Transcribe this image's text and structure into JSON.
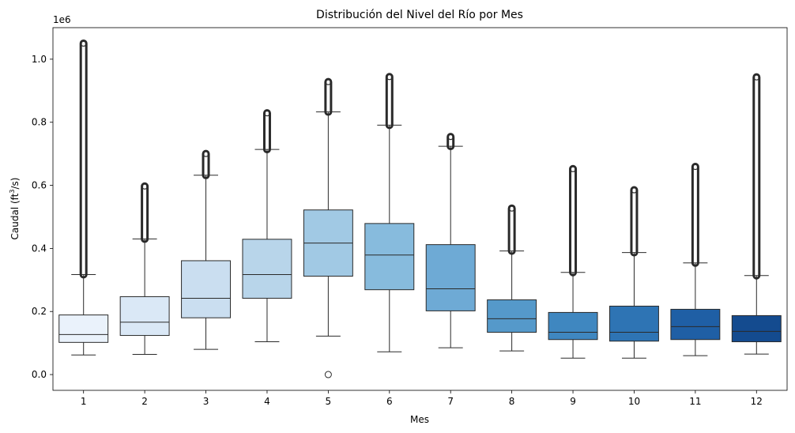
{
  "chart_data": {
    "type": "box",
    "title": "Distribución del Nivel del Río por Mes",
    "xlabel": "Mes",
    "ylabel_main": "Caudal (ft",
    "ylabel_sup": "3",
    "ylabel_tail": "/s)",
    "y_offset_text": "1e6",
    "ylim": [
      -0.05,
      1.1
    ],
    "yticks": [
      0.0,
      0.2,
      0.4,
      0.6,
      0.8,
      1.0
    ],
    "ytick_labels": [
      "0.0",
      "0.2",
      "0.4",
      "0.6",
      "0.8",
      "1.0"
    ],
    "categories": [
      "1",
      "2",
      "3",
      "4",
      "5",
      "6",
      "7",
      "8",
      "9",
      "10",
      "11",
      "12"
    ],
    "boxes": [
      {
        "whisker_low": 0.062,
        "q1": 0.102,
        "median": 0.127,
        "q3": 0.189,
        "whisker_high": 0.317,
        "outliers_high": [
          0.317,
          1.05
        ],
        "outliers_low": [],
        "color": "#eaf2fb"
      },
      {
        "whisker_low": 0.064,
        "q1": 0.124,
        "median": 0.166,
        "q3": 0.247,
        "whisker_high": 0.43,
        "outliers_high": [
          0.43,
          0.597
        ],
        "outliers_low": [],
        "color": "#dae8f6"
      },
      {
        "whisker_low": 0.08,
        "q1": 0.18,
        "median": 0.242,
        "q3": 0.361,
        "whisker_high": 0.632,
        "outliers_high": [
          0.632,
          0.7
        ],
        "outliers_low": [],
        "color": "#cadef0"
      },
      {
        "whisker_low": 0.104,
        "q1": 0.242,
        "median": 0.317,
        "q3": 0.429,
        "whisker_high": 0.714,
        "outliers_high": [
          0.714,
          0.829
        ],
        "outliers_low": [],
        "color": "#b8d5ea"
      },
      {
        "whisker_low": 0.122,
        "q1": 0.312,
        "median": 0.417,
        "q3": 0.522,
        "whisker_high": 0.833,
        "outliers_high": [
          0.833,
          0.928
        ],
        "outliers_low": [
          0.0
        ],
        "color": "#a1c9e4"
      },
      {
        "whisker_low": 0.072,
        "q1": 0.269,
        "median": 0.379,
        "q3": 0.479,
        "whisker_high": 0.791,
        "outliers_high": [
          0.791,
          0.944
        ],
        "outliers_low": [],
        "color": "#87bbdd"
      },
      {
        "whisker_low": 0.085,
        "q1": 0.202,
        "median": 0.272,
        "q3": 0.412,
        "whisker_high": 0.724,
        "outliers_high": [
          0.724,
          0.754
        ],
        "outliers_low": [],
        "color": "#6eaad5"
      },
      {
        "whisker_low": 0.075,
        "q1": 0.134,
        "median": 0.177,
        "q3": 0.237,
        "whisker_high": 0.392,
        "outliers_high": [
          0.392,
          0.527
        ],
        "outliers_low": [],
        "color": "#5599ca"
      },
      {
        "whisker_low": 0.052,
        "q1": 0.111,
        "median": 0.134,
        "q3": 0.197,
        "whisker_high": 0.324,
        "outliers_high": [
          0.324,
          0.652
        ],
        "outliers_low": [],
        "color": "#3f87c0"
      },
      {
        "whisker_low": 0.052,
        "q1": 0.106,
        "median": 0.134,
        "q3": 0.217,
        "whisker_high": 0.387,
        "outliers_high": [
          0.387,
          0.585
        ],
        "outliers_low": [],
        "color": "#2e74b4"
      },
      {
        "whisker_low": 0.06,
        "q1": 0.111,
        "median": 0.152,
        "q3": 0.207,
        "whisker_high": 0.354,
        "outliers_high": [
          0.354,
          0.659
        ],
        "outliers_low": [],
        "color": "#1f5fa5"
      },
      {
        "whisker_low": 0.065,
        "q1": 0.104,
        "median": 0.137,
        "q3": 0.187,
        "whisker_high": 0.314,
        "outliers_high": [
          0.314,
          0.943
        ],
        "outliers_low": [],
        "color": "#144b8f"
      }
    ],
    "grid": false,
    "legend": "none"
  }
}
